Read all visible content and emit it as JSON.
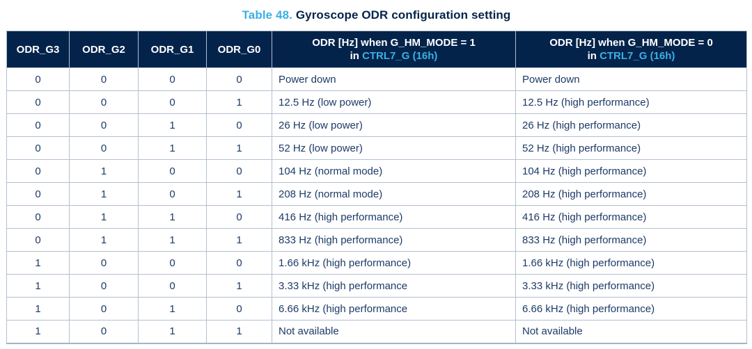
{
  "title": {
    "label": "Table 48.",
    "text": "Gyroscope ODR configuration setting"
  },
  "table": {
    "bit_headers": [
      "ODR_G3",
      "ODR_G2",
      "ODR_G1",
      "ODR_G0"
    ],
    "odr_headers": [
      {
        "line1": "ODR [Hz] when G_HM_MODE = 1",
        "line2_prefix": "in ",
        "line2_link": "CTRL7_G (16h)"
      },
      {
        "line1": "ODR [Hz] when G_HM_MODE = 0",
        "line2_prefix": "in ",
        "line2_link": "CTRL7_G (16h)"
      }
    ],
    "rows": [
      {
        "bits": [
          "0",
          "0",
          "0",
          "0"
        ],
        "hm1": "Power down",
        "hm0": "Power down"
      },
      {
        "bits": [
          "0",
          "0",
          "0",
          "1"
        ],
        "hm1": "12.5 Hz (low power)",
        "hm0": "12.5 Hz (high performance)"
      },
      {
        "bits": [
          "0",
          "0",
          "1",
          "0"
        ],
        "hm1": "26 Hz (low power)",
        "hm0": "26 Hz (high performance)"
      },
      {
        "bits": [
          "0",
          "0",
          "1",
          "1"
        ],
        "hm1": "52 Hz (low power)",
        "hm0": "52 Hz (high performance)"
      },
      {
        "bits": [
          "0",
          "1",
          "0",
          "0"
        ],
        "hm1": "104 Hz (normal mode)",
        "hm0": "104 Hz (high performance)"
      },
      {
        "bits": [
          "0",
          "1",
          "0",
          "1"
        ],
        "hm1": "208 Hz (normal mode)",
        "hm0": "208 Hz (high performance)"
      },
      {
        "bits": [
          "0",
          "1",
          "1",
          "0"
        ],
        "hm1": "416 Hz (high performance)",
        "hm0": "416 Hz (high performance)"
      },
      {
        "bits": [
          "0",
          "1",
          "1",
          "1"
        ],
        "hm1": "833 Hz (high performance)",
        "hm0": "833 Hz (high performance)"
      },
      {
        "bits": [
          "1",
          "0",
          "0",
          "0"
        ],
        "hm1": "1.66 kHz (high performance)",
        "hm0": "1.66 kHz (high performance)"
      },
      {
        "bits": [
          "1",
          "0",
          "0",
          "1"
        ],
        "hm1": "3.33 kHz (high performance",
        "hm0": "3.33 kHz (high performance)"
      },
      {
        "bits": [
          "1",
          "0",
          "1",
          "0"
        ],
        "hm1": "6.66 kHz (high performance",
        "hm0": "6.66 kHz (high performance)"
      },
      {
        "bits": [
          "1",
          "0",
          "1",
          "1"
        ],
        "hm1": "Not available",
        "hm0": "Not available"
      }
    ]
  },
  "colors": {
    "accent_blue": "#3cb0e4",
    "header_bg": "#03234b",
    "header_text": "#ffffff",
    "body_text": "#1d3a68",
    "grid_line": "#b3bfcf"
  }
}
